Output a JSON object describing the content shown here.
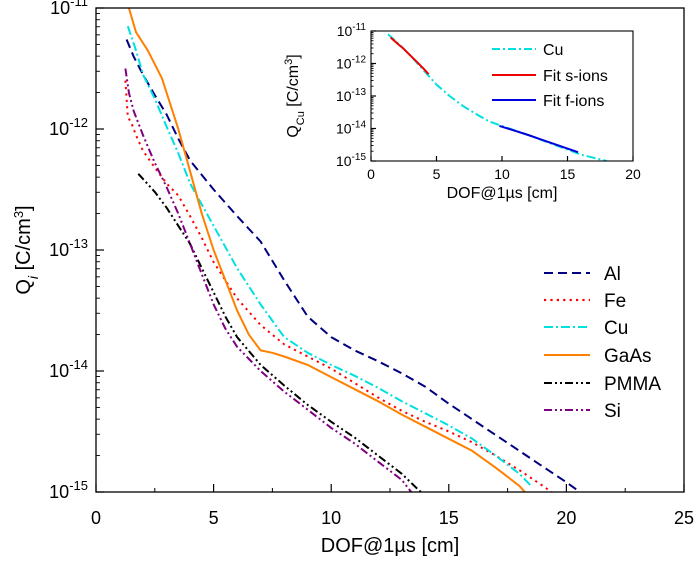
{
  "chart_data": [
    {
      "type": "line",
      "title": "",
      "xlabel": "DOF@1µs [cm]",
      "ylabel_main": "Q",
      "ylabel_sub": "i",
      "ylabel_unit": " [C/cm",
      "ylabel_sup": "3",
      "ylabel_end": "]",
      "xlim": [
        0,
        25
      ],
      "ylim_log10": [
        -15,
        -11
      ],
      "yscale": "log",
      "x_ticks": [
        0,
        5,
        10,
        15,
        20,
        25
      ],
      "x_tick_labels": [
        "0",
        "5",
        "10",
        "15",
        "20",
        "25"
      ],
      "y_ticks_exp": [
        -11,
        -12,
        -13,
        -14,
        -15
      ],
      "y_tick_base": "10",
      "y_tick_exps": [
        "-11",
        "-12",
        "-13",
        "-14",
        "-15"
      ],
      "legend_position": "right-middle",
      "series": [
        {
          "name": "Al",
          "color": "#000080",
          "dash": "dash",
          "points": [
            [
              1.3,
              -11.26
            ],
            [
              1.6,
              -11.4
            ],
            [
              2,
              -11.55
            ],
            [
              2.5,
              -11.72
            ],
            [
              3,
              -11.88
            ],
            [
              3.5,
              -12.08
            ],
            [
              4,
              -12.26
            ],
            [
              5,
              -12.5
            ],
            [
              6,
              -12.72
            ],
            [
              7,
              -12.93
            ],
            [
              8,
              -13.25
            ],
            [
              9,
              -13.55
            ],
            [
              10,
              -13.72
            ],
            [
              11,
              -13.83
            ],
            [
              12,
              -13.92
            ],
            [
              13,
              -14.02
            ],
            [
              14,
              -14.13
            ],
            [
              15,
              -14.27
            ],
            [
              16,
              -14.4
            ],
            [
              17,
              -14.53
            ],
            [
              18,
              -14.66
            ],
            [
              19,
              -14.79
            ],
            [
              20,
              -14.92
            ],
            [
              21,
              -15.06
            ],
            [
              21.4,
              -15.1
            ]
          ]
        },
        {
          "name": "Fe",
          "color": "#ff0000",
          "dash": "dot",
          "points": [
            [
              1.25,
              -11.6
            ],
            [
              1.35,
              -11.9
            ],
            [
              1.5,
              -11.95
            ],
            [
              1.7,
              -12.05
            ],
            [
              2,
              -12.18
            ],
            [
              2.5,
              -12.32
            ],
            [
              3,
              -12.45
            ],
            [
              3.5,
              -12.55
            ],
            [
              4,
              -12.72
            ],
            [
              4.5,
              -12.9
            ],
            [
              5,
              -13.1
            ],
            [
              6,
              -13.4
            ],
            [
              7,
              -13.62
            ],
            [
              8,
              -13.78
            ],
            [
              9,
              -13.88
            ],
            [
              10,
              -13.98
            ],
            [
              11,
              -14.1
            ],
            [
              12,
              -14.22
            ],
            [
              13,
              -14.33
            ],
            [
              14,
              -14.42
            ],
            [
              15,
              -14.5
            ],
            [
              16,
              -14.59
            ],
            [
              17,
              -14.7
            ],
            [
              18,
              -14.82
            ],
            [
              19,
              -14.95
            ],
            [
              19.8,
              -15.06
            ]
          ]
        },
        {
          "name": "Cu",
          "color": "#00e0e0",
          "dash": "dashdot",
          "points": [
            [
              1.35,
              -11.15
            ],
            [
              1.7,
              -11.35
            ],
            [
              2,
              -11.55
            ],
            [
              2.5,
              -11.75
            ],
            [
              3,
              -11.98
            ],
            [
              3.5,
              -12.2
            ],
            [
              4,
              -12.45
            ],
            [
              5,
              -12.8
            ],
            [
              6,
              -13.15
            ],
            [
              7,
              -13.45
            ],
            [
              8,
              -13.72
            ],
            [
              9,
              -13.85
            ],
            [
              10,
              -13.95
            ],
            [
              11,
              -14.04
            ],
            [
              12,
              -14.14
            ],
            [
              13,
              -14.25
            ],
            [
              14,
              -14.35
            ],
            [
              15,
              -14.45
            ],
            [
              16,
              -14.56
            ],
            [
              17,
              -14.7
            ],
            [
              18,
              -14.85
            ],
            [
              18.5,
              -14.95
            ]
          ]
        },
        {
          "name": "GaAs",
          "color": "#ff8000",
          "dash": "solid",
          "points": [
            [
              1.4,
              -11.0
            ],
            [
              1.7,
              -11.2
            ],
            [
              2.2,
              -11.35
            ],
            [
              2.8,
              -11.58
            ],
            [
              3.5,
              -12.0
            ],
            [
              4,
              -12.35
            ],
            [
              4.5,
              -12.7
            ],
            [
              5,
              -13.0
            ],
            [
              5.5,
              -13.25
            ],
            [
              6,
              -13.5
            ],
            [
              6.5,
              -13.7
            ],
            [
              7,
              -13.83
            ],
            [
              7.5,
              -13.85
            ],
            [
              8,
              -13.88
            ],
            [
              9,
              -13.95
            ],
            [
              10,
              -14.05
            ],
            [
              11,
              -14.15
            ],
            [
              12,
              -14.25
            ],
            [
              13,
              -14.36
            ],
            [
              14,
              -14.46
            ],
            [
              15,
              -14.56
            ],
            [
              16,
              -14.66
            ],
            [
              17,
              -14.8
            ],
            [
              18,
              -14.95
            ],
            [
              18.5,
              -15.06
            ]
          ]
        },
        {
          "name": "PMMA",
          "color": "#000000",
          "dash": "dashdotdot",
          "points": [
            [
              1.8,
              -12.37
            ],
            [
              2.5,
              -12.52
            ],
            [
              3,
              -12.65
            ],
            [
              3.5,
              -12.8
            ],
            [
              4,
              -12.95
            ],
            [
              4.5,
              -13.15
            ],
            [
              5,
              -13.35
            ],
            [
              5.5,
              -13.55
            ],
            [
              6,
              -13.72
            ],
            [
              7,
              -13.95
            ],
            [
              8,
              -14.12
            ],
            [
              9,
              -14.28
            ],
            [
              10,
              -14.42
            ],
            [
              11,
              -14.55
            ],
            [
              12,
              -14.7
            ],
            [
              13,
              -14.85
            ],
            [
              13.7,
              -14.98
            ],
            [
              14,
              -15.03
            ]
          ]
        },
        {
          "name": "Si",
          "color": "#800080",
          "dash": "dashdotdot",
          "points": [
            [
              1.25,
              -11.5
            ],
            [
              1.4,
              -11.7
            ],
            [
              1.6,
              -11.85
            ],
            [
              2,
              -12.05
            ],
            [
              2.5,
              -12.28
            ],
            [
              3,
              -12.48
            ],
            [
              3.5,
              -12.7
            ],
            [
              4,
              -12.95
            ],
            [
              4.5,
              -13.2
            ],
            [
              5,
              -13.45
            ],
            [
              5.5,
              -13.65
            ],
            [
              6,
              -13.8
            ],
            [
              7,
              -14.0
            ],
            [
              8,
              -14.17
            ],
            [
              9,
              -14.32
            ],
            [
              10,
              -14.47
            ],
            [
              11,
              -14.6
            ],
            [
              12,
              -14.75
            ],
            [
              13,
              -14.9
            ],
            [
              13.4,
              -15.0
            ]
          ]
        }
      ]
    },
    {
      "type": "line",
      "title": "",
      "xlabel": "DOF@1µs [cm]",
      "ylabel_main": "Q",
      "ylabel_sub": "Cu",
      "ylabel_unit": " [C/cm",
      "ylabel_sup": "3",
      "ylabel_end": "]",
      "xlim": [
        0,
        20
      ],
      "ylim_log10": [
        -15,
        -11
      ],
      "yscale": "log",
      "x_ticks": [
        0,
        5,
        10,
        15,
        20
      ],
      "x_tick_labels": [
        "0",
        "5",
        "10",
        "15",
        "20"
      ],
      "y_ticks_exp": [
        -11,
        -12,
        -13,
        -14,
        -15
      ],
      "y_tick_base": "10",
      "y_tick_exps": [
        "-11",
        "-12",
        "-13",
        "-14",
        "-15"
      ],
      "legend_position": "top-right",
      "series": [
        {
          "name": "Cu",
          "color": "#00e0e0",
          "dash": "dashdot",
          "points": [
            [
              1.3,
              -11.1
            ],
            [
              2,
              -11.35
            ],
            [
              3,
              -11.75
            ],
            [
              4,
              -12.2
            ],
            [
              5,
              -12.65
            ],
            [
              6,
              -13.0
            ],
            [
              7,
              -13.3
            ],
            [
              8,
              -13.55
            ],
            [
              9,
              -13.78
            ],
            [
              10,
              -13.92
            ],
            [
              11,
              -14.06
            ],
            [
              12,
              -14.2
            ],
            [
              13,
              -14.35
            ],
            [
              14,
              -14.5
            ],
            [
              15,
              -14.65
            ],
            [
              16,
              -14.8
            ],
            [
              17,
              -14.9
            ],
            [
              18,
              -15.0
            ]
          ]
        },
        {
          "name": "Fit s-ions",
          "color": "#ee0000",
          "dash": "solid",
          "points": [
            [
              1.5,
              -11.2
            ],
            [
              2,
              -11.38
            ],
            [
              2.5,
              -11.55
            ],
            [
              3,
              -11.75
            ],
            [
              3.5,
              -11.95
            ],
            [
              4,
              -12.15
            ],
            [
              4.4,
              -12.33
            ]
          ]
        },
        {
          "name": "Fit f-ions",
          "color": "#0000dd",
          "dash": "solid",
          "points": [
            [
              9.8,
              -13.92
            ],
            [
              11,
              -14.07
            ],
            [
              12,
              -14.2
            ],
            [
              13,
              -14.34
            ],
            [
              14,
              -14.48
            ],
            [
              15,
              -14.62
            ],
            [
              15.8,
              -14.73
            ]
          ]
        }
      ]
    }
  ]
}
